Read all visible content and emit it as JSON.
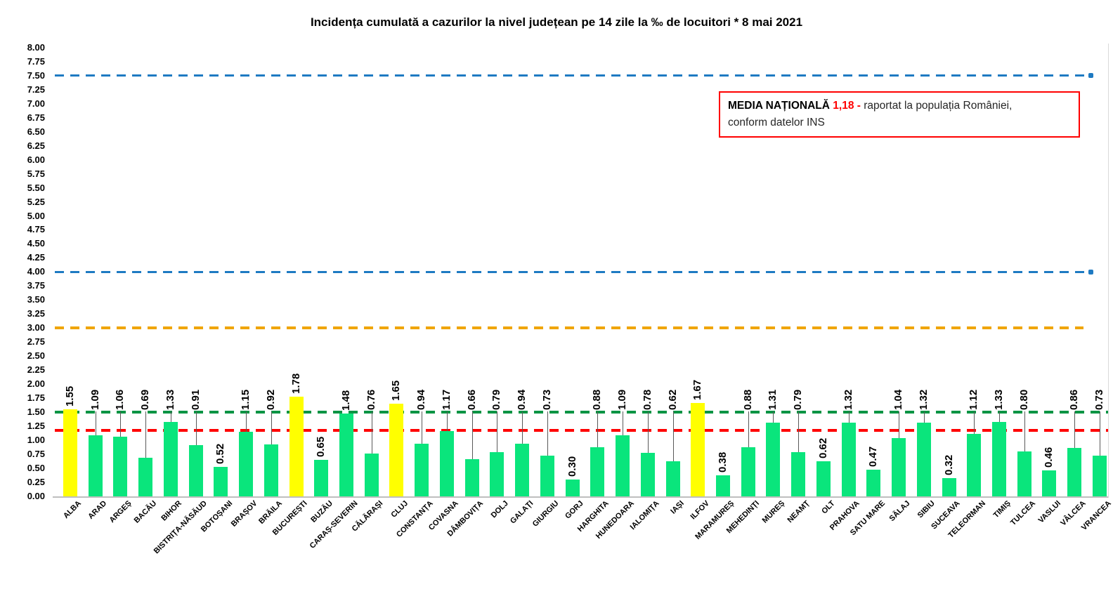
{
  "title": "Incidența cumulată a cazurilor la nivel județean pe 14 zile la ‰ de locuitori *  8 mai 2021",
  "legend_box": {
    "label": "MEDIA NAȚIONALĂ",
    "value": "1,18 -",
    "text_line1": "raportat la populația României,",
    "text_line2": "conform datelor INS"
  },
  "chart_data": {
    "type": "bar",
    "title": "Incidența cumulată a cazurilor la nivel județean pe 14 zile la ‰ de locuitori",
    "date": "8 mai 2021",
    "xlabel": "",
    "ylabel": "",
    "ylim": [
      0,
      8
    ],
    "ytick_step": 0.25,
    "grid": false,
    "legend_position": "none",
    "categories": [
      "ALBA",
      "ARAD",
      "ARGEȘ",
      "BACĂU",
      "BIHOR",
      "BISTRIȚA-NĂSĂUD",
      "BOTOȘANI",
      "BRAȘOV",
      "BRĂILA",
      "BUCUREȘTI",
      "BUZĂU",
      "CARAȘ-SEVERIN",
      "CĂLĂRAȘI",
      "CLUJ",
      "CONSTANȚA",
      "COVASNA",
      "DÂMBOVIȚA",
      "DOLJ",
      "GALAȚI",
      "GIURGIU",
      "GORJ",
      "HARGHITA",
      "HUNEDOARA",
      "IALOMIȚA",
      "IAȘI",
      "ILFOV",
      "MARAMUREȘ",
      "MEHEDINȚI",
      "MUREȘ",
      "NEAMȚ",
      "OLT",
      "PRAHOVA",
      "SATU MARE",
      "SĂLAJ",
      "SIBIU",
      "SUCEAVA",
      "TELEORMAN",
      "TIMIȘ",
      "TULCEA",
      "VASLUI",
      "VÂLCEA",
      "VRANCEA"
    ],
    "values": [
      1.55,
      1.09,
      1.06,
      0.69,
      1.33,
      0.91,
      0.52,
      1.15,
      0.92,
      1.78,
      0.65,
      1.48,
      0.76,
      1.65,
      0.94,
      1.17,
      0.66,
      0.79,
      0.94,
      0.73,
      0.3,
      0.88,
      1.09,
      0.78,
      0.62,
      1.67,
      0.38,
      0.88,
      1.31,
      0.79,
      0.62,
      1.32,
      0.47,
      1.04,
      1.32,
      0.32,
      1.12,
      1.33,
      0.8,
      0.46,
      0.86,
      0.73
    ],
    "bar_color_default": "#0AE57C",
    "bar_color_highlight": "#FFFF00",
    "highlight_rule": "value >= 1.5",
    "national_average": 1.18,
    "reference_lines": [
      {
        "value": 7.5,
        "color": "#1E7AC2",
        "thickness": 3,
        "cap_right": true,
        "right_end": 1545
      },
      {
        "value": 4.0,
        "color": "#1E7AC2",
        "thickness": 3,
        "cap_right": true,
        "right_end": 1545
      },
      {
        "value": 3.0,
        "color": "#F0A500",
        "thickness": 4,
        "cap_right": false,
        "right_end": 1542
      },
      {
        "value": 1.5,
        "color": "#0B9444",
        "thickness": 4,
        "cap_right": false,
        "right_end": 1577
      },
      {
        "value": 1.18,
        "color": "#FF0000",
        "thickness": 4,
        "cap_right": false,
        "right_end": 1577
      }
    ],
    "label_near_bar": [
      "BOTOȘANI",
      "BUZĂU",
      "GORJ",
      "MARAMUREȘ",
      "OLT",
      "SATU MARE",
      "SUCEAVA",
      "VASLUI"
    ]
  }
}
